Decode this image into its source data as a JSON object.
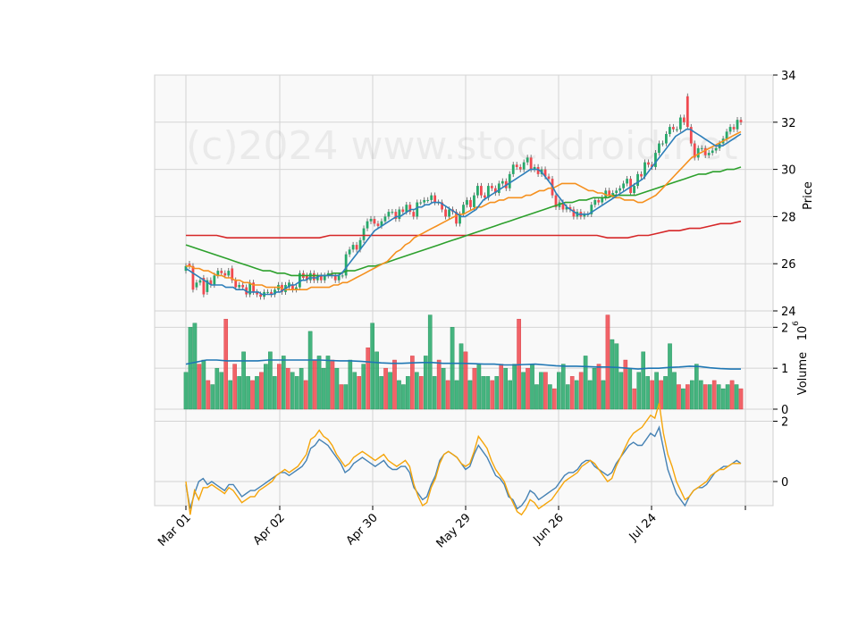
{
  "watermark": "(c)2024 www.stockdroid.net",
  "chart_data": {
    "type": "candlestick",
    "x_tick_labels": [
      "Mar 01",
      "Apr 02",
      "Apr 30",
      "May 29",
      "Jun 26",
      "Jul 24"
    ],
    "colors": {
      "up": "#26a86a",
      "down": "#f0494f",
      "ma_fast": "#2d7fba",
      "ma_mid": "#f5901e",
      "ma_slow": "#2ca02c",
      "ma_long": "#d62728",
      "volume_avg": "#1f77b4",
      "osc_a": "#4682b4",
      "osc_b": "#f5a50a"
    },
    "price_panel": {
      "ylabel": "Price",
      "ylim": [
        24,
        34
      ],
      "yticks": [
        24,
        26,
        28,
        30,
        32,
        34
      ],
      "close": [
        25.9,
        25.9,
        24.9,
        25.2,
        25.3,
        24.7,
        25.3,
        25.1,
        25.5,
        25.7,
        25.6,
        25.5,
        25.7,
        25.3,
        25.0,
        25.1,
        25.0,
        24.7,
        25.2,
        24.8,
        24.7,
        24.6,
        24.8,
        24.8,
        24.7,
        24.9,
        25.1,
        24.8,
        25.1,
        25.2,
        24.9,
        25.0,
        25.6,
        25.4,
        25.3,
        25.6,
        25.3,
        25.5,
        25.3,
        25.5,
        25.6,
        25.5,
        25.3,
        25.5,
        25.5,
        26.4,
        26.6,
        26.8,
        26.6,
        27.0,
        27.5,
        27.8,
        27.9,
        27.7,
        27.6,
        27.8,
        28.0,
        28.2,
        28.2,
        27.9,
        28.3,
        28.2,
        28.5,
        28.2,
        28.0,
        28.6,
        28.6,
        28.7,
        28.7,
        28.9,
        28.6,
        28.6,
        28.3,
        28.0,
        28.3,
        28.2,
        27.7,
        28.1,
        28.5,
        28.7,
        28.4,
        28.9,
        29.3,
        28.9,
        28.8,
        29.3,
        29.2,
        29.0,
        29.4,
        29.5,
        29.2,
        29.8,
        30.2,
        30.1,
        30.0,
        30.3,
        30.5,
        30.0,
        30.1,
        29.8,
        30.0,
        29.7,
        29.6,
        28.9,
        28.4,
        28.6,
        28.3,
        28.4,
        28.3,
        28.0,
        28.2,
        28.0,
        28.1,
        28.1,
        28.5,
        28.7,
        28.6,
        28.8,
        29.1,
        28.9,
        29.0,
        29.1,
        29.2,
        29.4,
        29.6,
        29.0,
        29.3,
        29.8,
        29.7,
        30.3,
        30.2,
        30.1,
        30.7,
        31.1,
        31.1,
        31.5,
        31.8,
        31.7,
        31.7,
        32.2,
        32.0,
        31.8,
        31.1,
        30.5,
        30.9,
        30.9,
        30.6,
        30.7,
        30.8,
        30.9,
        31.1,
        31.3,
        31.6,
        31.8,
        31.7,
        32.1,
        32.0
      ],
      "open": [
        25.7,
        26.0,
        25.9,
        25.0,
        25.2,
        25.4,
        24.8,
        25.3,
        25.1,
        25.5,
        25.7,
        25.6,
        25.5,
        25.8,
        25.3,
        25.0,
        25.1,
        25.0,
        24.7,
        25.2,
        24.8,
        24.7,
        24.6,
        24.8,
        24.8,
        24.7,
        24.9,
        25.1,
        24.8,
        25.0,
        25.1,
        24.9,
        25.0,
        25.6,
        25.5,
        25.3,
        25.6,
        25.3,
        25.5,
        25.3,
        25.5,
        25.6,
        25.5,
        25.3,
        25.5,
        25.5,
        26.4,
        26.6,
        26.8,
        26.6,
        27.0,
        27.5,
        27.8,
        27.9,
        27.7,
        27.6,
        27.8,
        28.0,
        28.2,
        28.2,
        27.9,
        28.3,
        28.2,
        28.5,
        28.2,
        28.0,
        28.6,
        28.6,
        28.7,
        28.7,
        28.9,
        28.6,
        28.6,
        28.3,
        28.0,
        28.3,
        28.2,
        27.7,
        28.1,
        28.5,
        28.7,
        28.4,
        28.9,
        29.3,
        28.9,
        28.8,
        29.3,
        29.2,
        29.0,
        29.4,
        29.5,
        29.2,
        29.8,
        30.2,
        30.1,
        30.0,
        30.3,
        30.5,
        30.0,
        30.1,
        29.8,
        30.0,
        29.7,
        29.6,
        28.9,
        28.4,
        28.6,
        28.3,
        28.4,
        28.3,
        28.0,
        28.2,
        28.0,
        28.1,
        28.1,
        28.5,
        28.7,
        28.6,
        28.8,
        29.1,
        28.9,
        29.0,
        29.1,
        29.2,
        29.4,
        29.6,
        29.0,
        29.3,
        29.8,
        29.7,
        30.3,
        30.2,
        30.1,
        30.7,
        31.1,
        31.1,
        31.5,
        31.8,
        31.7,
        31.7,
        32.2,
        33.1,
        31.8,
        31.1,
        30.5,
        30.9,
        30.9,
        30.6,
        30.7,
        30.8,
        30.9,
        31.1,
        31.3,
        31.6,
        31.8,
        31.7,
        32.1
      ],
      "ma_fast": [
        25.8,
        25.7,
        25.6,
        25.5,
        25.4,
        25.3,
        25.2,
        25.1,
        25.1,
        25.1,
        25.1,
        25.0,
        25.0,
        25.0,
        24.9,
        24.9,
        24.9,
        24.8,
        24.8,
        24.8,
        24.8,
        24.7,
        24.7,
        24.7,
        24.7,
        24.8,
        24.8,
        24.9,
        25.0,
        25.1,
        25.1,
        25.2,
        25.3,
        25.3,
        25.4,
        25.4,
        25.4,
        25.5,
        25.5,
        25.5,
        25.5,
        25.5,
        25.5,
        25.6,
        25.8,
        26.0,
        26.2,
        26.4,
        26.6,
        26.8,
        27.0,
        27.2,
        27.4,
        27.5,
        27.6,
        27.7,
        27.8,
        27.9,
        28.0,
        28.0,
        28.1,
        28.2,
        28.3,
        28.3,
        28.4,
        28.4,
        28.5,
        28.5,
        28.6,
        28.6,
        28.6,
        28.5,
        28.4,
        28.3,
        28.2,
        28.1,
        28.0,
        28.0,
        28.1,
        28.2,
        28.3,
        28.5,
        28.7,
        28.8,
        28.9,
        29.0,
        29.1,
        29.2,
        29.3,
        29.4,
        29.5,
        29.6,
        29.7,
        29.8,
        29.9,
        30.0,
        30.0,
        30.0,
        29.9,
        29.7,
        29.5,
        29.3,
        29.0,
        28.8,
        28.6,
        28.4,
        28.3,
        28.2,
        28.1,
        28.1,
        28.1,
        28.1,
        28.2,
        28.3,
        28.4,
        28.5,
        28.6,
        28.7,
        28.8,
        28.9,
        29.0,
        29.1,
        29.2,
        29.3,
        29.4,
        29.5,
        29.6,
        29.8,
        30.0,
        30.2,
        30.4,
        30.6,
        30.8,
        31.0,
        31.2,
        31.4,
        31.5,
        31.6,
        31.7,
        31.7,
        31.6,
        31.5,
        31.4,
        31.3,
        31.2,
        31.1,
        31.0,
        31.0,
        31.0,
        31.1,
        31.2,
        31.3,
        31.4,
        31.5
      ],
      "ma_mid": [
        25.9,
        25.9,
        25.8,
        25.8,
        25.7,
        25.7,
        25.6,
        25.5,
        25.5,
        25.4,
        25.4,
        25.3,
        25.3,
        25.2,
        25.2,
        25.1,
        25.1,
        25.1,
        25.0,
        25.0,
        25.0,
        25.0,
        24.9,
        24.9,
        24.9,
        24.9,
        24.9,
        24.9,
        25.0,
        25.0,
        25.0,
        25.0,
        25.0,
        25.1,
        25.1,
        25.2,
        25.2,
        25.3,
        25.4,
        25.5,
        25.6,
        25.7,
        25.8,
        25.9,
        26.0,
        26.1,
        26.3,
        26.5,
        26.6,
        26.8,
        26.9,
        27.1,
        27.2,
        27.3,
        27.4,
        27.5,
        27.6,
        27.7,
        27.8,
        27.9,
        28.0,
        28.1,
        28.1,
        28.2,
        28.3,
        28.4,
        28.4,
        28.5,
        28.6,
        28.6,
        28.7,
        28.7,
        28.8,
        28.8,
        28.8,
        28.8,
        28.9,
        28.9,
        29.0,
        29.1,
        29.1,
        29.2,
        29.2,
        29.3,
        29.4,
        29.4,
        29.4,
        29.4,
        29.3,
        29.2,
        29.1,
        29.1,
        29.0,
        29.0,
        28.9,
        28.9,
        28.8,
        28.8,
        28.7,
        28.7,
        28.7,
        28.6,
        28.6,
        28.7,
        28.8,
        28.9,
        29.1,
        29.3,
        29.5,
        29.7,
        29.9,
        30.1,
        30.3,
        30.5,
        30.6,
        30.7,
        30.8,
        30.9,
        31.0,
        31.1,
        31.2,
        31.3,
        31.4,
        31.5,
        31.6
      ],
      "ma_slow": [
        26.8,
        26.7,
        26.6,
        26.5,
        26.4,
        26.3,
        26.2,
        26.1,
        26.0,
        25.9,
        25.8,
        25.7,
        25.7,
        25.6,
        25.6,
        25.5,
        25.5,
        25.5,
        25.5,
        25.5,
        25.5,
        25.6,
        25.6,
        25.7,
        25.7,
        25.8,
        25.9,
        25.9,
        26.0,
        26.1,
        26.2,
        26.3,
        26.4,
        26.5,
        26.6,
        26.7,
        26.8,
        26.9,
        27.0,
        27.1,
        27.2,
        27.3,
        27.4,
        27.5,
        27.6,
        27.7,
        27.8,
        27.9,
        28.0,
        28.1,
        28.2,
        28.3,
        28.4,
        28.5,
        28.6,
        28.6,
        28.7,
        28.7,
        28.8,
        28.8,
        28.8,
        28.9,
        28.9,
        28.9,
        28.9,
        29.0,
        29.1,
        29.2,
        29.3,
        29.4,
        29.5,
        29.6,
        29.7,
        29.8,
        29.8,
        29.9,
        29.9,
        30.0,
        30.0,
        30.1
      ],
      "ma_long": [
        27.2,
        27.2,
        27.2,
        27.2,
        27.1,
        27.1,
        27.1,
        27.1,
        27.1,
        27.1,
        27.1,
        27.1,
        27.1,
        27.1,
        27.2,
        27.2,
        27.2,
        27.2,
        27.2,
        27.2,
        27.2,
        27.2,
        27.2,
        27.2,
        27.2,
        27.2,
        27.2,
        27.2,
        27.2,
        27.2,
        27.2,
        27.2,
        27.2,
        27.2,
        27.2,
        27.2,
        27.2,
        27.2,
        27.2,
        27.2,
        27.2,
        27.1,
        27.1,
        27.1,
        27.2,
        27.2,
        27.3,
        27.4,
        27.4,
        27.5,
        27.5,
        27.6,
        27.7,
        27.7,
        27.8
      ]
    },
    "volume_panel": {
      "ylabel": "Volume",
      "multiplier_label": "10",
      "multiplier_exp": "6",
      "ylim": [
        0,
        2.4
      ],
      "yticks": [
        0,
        1,
        2
      ],
      "values": [
        0.9,
        2.0,
        2.1,
        1.1,
        1.2,
        0.7,
        0.6,
        1.0,
        0.9,
        2.2,
        0.7,
        1.1,
        0.8,
        1.4,
        0.8,
        0.7,
        0.8,
        0.9,
        1.1,
        1.4,
        0.8,
        1.1,
        1.3,
        1.0,
        0.9,
        0.8,
        1.0,
        0.7,
        1.9,
        1.2,
        1.3,
        1.0,
        1.3,
        1.2,
        1.0,
        0.6,
        0.6,
        1.2,
        0.9,
        0.8,
        1.1,
        1.5,
        2.1,
        1.4,
        0.8,
        1.0,
        0.9,
        1.2,
        0.7,
        0.6,
        0.8,
        1.3,
        0.9,
        0.8,
        1.3,
        2.3,
        0.8,
        1.2,
        1.0,
        0.7,
        2.0,
        0.7,
        1.6,
        1.4,
        0.7,
        1.0,
        1.1,
        0.8,
        0.8,
        0.7,
        0.8,
        1.1,
        1.0,
        0.7,
        1.1,
        2.2,
        0.9,
        1.0,
        1.1,
        0.6,
        0.9,
        0.9,
        0.6,
        0.5,
        0.9,
        1.1,
        0.6,
        0.8,
        0.7,
        0.9,
        1.3,
        0.7,
        1.0,
        1.1,
        0.7,
        2.3,
        1.7,
        1.6,
        0.9,
        1.2,
        1.0,
        0.5,
        0.9,
        1.4,
        0.8,
        0.7,
        0.9,
        0.7,
        0.8,
        1.6,
        0.9,
        0.6,
        0.5,
        0.6,
        0.7,
        1.1,
        0.7,
        0.6,
        0.6,
        0.7,
        0.6,
        0.5,
        0.6,
        0.7,
        0.6,
        0.5
      ],
      "avg": [
        1.1,
        1.15,
        1.2,
        1.2,
        1.18,
        1.18,
        1.18,
        1.18,
        1.2,
        1.2,
        1.2,
        1.2,
        1.2,
        1.2,
        1.19,
        1.18,
        1.18,
        1.17,
        1.15,
        1.13,
        1.12,
        1.12,
        1.13,
        1.14,
        1.14,
        1.12,
        1.12,
        1.12,
        1.11,
        1.1,
        1.1,
        1.08,
        1.08,
        1.09,
        1.1,
        1.08,
        1.06,
        1.05,
        1.05,
        1.04,
        1.03,
        1.03,
        1.02,
        1.0,
        0.98,
        1.0,
        1.0,
        1.02,
        1.03,
        1.05,
        1.04,
        1.01,
        0.99,
        0.98,
        0.98
      ]
    },
    "oscillator_panel": {
      "ylim": [
        -0.8,
        2.4
      ],
      "yticks": [
        0,
        2
      ],
      "series_a": [
        -0.1,
        -0.9,
        -0.4,
        0.0,
        0.1,
        -0.1,
        0.0,
        -0.1,
        -0.2,
        -0.3,
        -0.1,
        -0.1,
        -0.3,
        -0.5,
        -0.4,
        -0.3,
        -0.3,
        -0.2,
        -0.1,
        0.0,
        0.1,
        0.2,
        0.3,
        0.3,
        0.2,
        0.3,
        0.4,
        0.5,
        0.7,
        1.1,
        1.2,
        1.4,
        1.3,
        1.2,
        1.0,
        0.8,
        0.6,
        0.3,
        0.4,
        0.6,
        0.7,
        0.8,
        0.7,
        0.6,
        0.5,
        0.6,
        0.7,
        0.5,
        0.4,
        0.4,
        0.5,
        0.5,
        0.3,
        -0.2,
        -0.4,
        -0.6,
        -0.5,
        -0.1,
        0.2,
        0.7,
        0.9,
        1.0,
        0.9,
        0.8,
        0.6,
        0.4,
        0.5,
        0.9,
        1.2,
        1.0,
        0.8,
        0.5,
        0.2,
        0.1,
        -0.1,
        -0.5,
        -0.6,
        -0.9,
        -0.8,
        -0.6,
        -0.3,
        -0.4,
        -0.6,
        -0.5,
        -0.4,
        -0.3,
        -0.2,
        0.0,
        0.2,
        0.3,
        0.3,
        0.4,
        0.6,
        0.7,
        0.7,
        0.5,
        0.4,
        0.3,
        0.2,
        0.3,
        0.6,
        0.8,
        1.0,
        1.2,
        1.3,
        1.2,
        1.2,
        1.4,
        1.6,
        1.5,
        1.8,
        1.1,
        0.4,
        0.0,
        -0.4,
        -0.6,
        -0.8,
        -0.5,
        -0.3,
        -0.2,
        -0.2,
        -0.1,
        0.1,
        0.3,
        0.4,
        0.5,
        0.5,
        0.6,
        0.7,
        0.6
      ],
      "series_b": [
        0.0,
        -1.1,
        -0.3,
        -0.6,
        -0.2,
        -0.2,
        -0.1,
        -0.2,
        -0.3,
        -0.4,
        -0.2,
        -0.3,
        -0.5,
        -0.7,
        -0.6,
        -0.5,
        -0.5,
        -0.3,
        -0.2,
        -0.1,
        0.0,
        0.2,
        0.3,
        0.4,
        0.3,
        0.4,
        0.5,
        0.7,
        0.9,
        1.4,
        1.5,
        1.7,
        1.5,
        1.4,
        1.2,
        0.9,
        0.7,
        0.5,
        0.6,
        0.8,
        0.9,
        1.0,
        0.9,
        0.8,
        0.7,
        0.8,
        0.9,
        0.7,
        0.6,
        0.5,
        0.6,
        0.7,
        0.5,
        -0.1,
        -0.5,
        -0.8,
        -0.7,
        -0.2,
        0.1,
        0.6,
        0.9,
        1.0,
        0.9,
        0.8,
        0.6,
        0.5,
        0.6,
        1.0,
        1.5,
        1.3,
        1.1,
        0.7,
        0.4,
        0.2,
        0.0,
        -0.4,
        -0.7,
        -1.0,
        -1.1,
        -0.9,
        -0.6,
        -0.7,
        -0.9,
        -0.8,
        -0.7,
        -0.6,
        -0.4,
        -0.2,
        0.0,
        0.1,
        0.2,
        0.3,
        0.5,
        0.6,
        0.7,
        0.6,
        0.4,
        0.2,
        0.0,
        0.1,
        0.5,
        0.8,
        1.1,
        1.4,
        1.6,
        1.7,
        1.8,
        2.0,
        2.2,
        2.1,
        2.6,
        1.6,
        0.9,
        0.5,
        0.0,
        -0.3,
        -0.6,
        -0.5,
        -0.3,
        -0.2,
        -0.1,
        0.0,
        0.2,
        0.3,
        0.4,
        0.4,
        0.5,
        0.6,
        0.6,
        0.6
      ]
    }
  }
}
